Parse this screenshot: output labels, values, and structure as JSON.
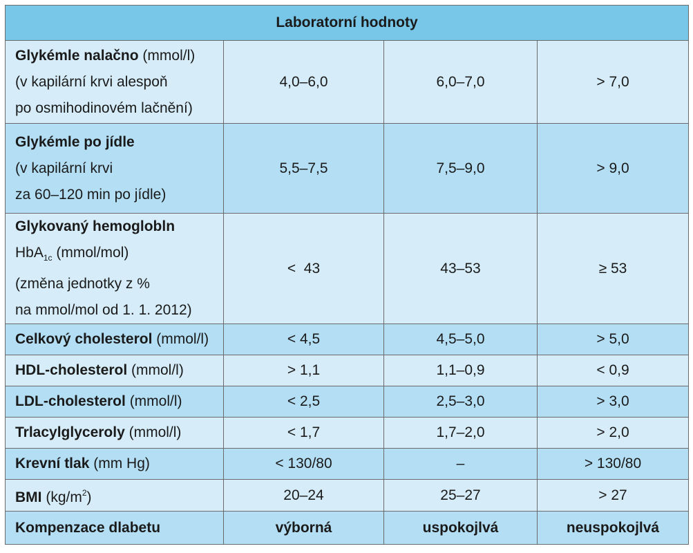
{
  "title": "Laboratorní hodnoty",
  "rows": [
    {
      "name_bold": "Glykémle nalačno",
      "name_unit": " (mmol/l)",
      "lines": [
        "(v kapilární krvi alespoň",
        "po osmihodinovém lačnění)"
      ],
      "values": [
        "4,0–6,0",
        "6,0–7,0",
        "> 7,0"
      ]
    },
    {
      "name_bold": "Glykémle po jídle",
      "name_unit": "",
      "lines": [
        "(v kapilární krvi",
        "za 60–120 min po jídle)"
      ],
      "values": [
        "5,5–7,5",
        "7,5–9,0",
        "> 9,0"
      ]
    },
    {
      "name_bold": "Glykovaný hemoglobln",
      "hba_prefix": "HbA",
      "hba_sub": "1c",
      "hba_unit": " (mmol/mol)",
      "lines": [
        "(změna jednotky z %",
        "na mmol/mol od 1. 1. 2012)"
      ],
      "values": [
        "<  43",
        "43–53",
        "≥ 53"
      ]
    },
    {
      "name_bold": "Celkový cholesterol",
      "name_unit": " (mmol/l)",
      "values": [
        "< 4,5",
        "4,5–5,0",
        "> 5,0"
      ]
    },
    {
      "name_bold": "HDL-cholesterol",
      "name_unit": " (mmol/l)",
      "values": [
        "> 1,1",
        "1,1–0,9",
        "< 0,9"
      ]
    },
    {
      "name_bold": "LDL-cholesterol",
      "name_unit": " (mmol/l)",
      "values": [
        "< 2,5",
        "2,5–3,0",
        "> 3,0"
      ]
    },
    {
      "name_bold": "Trlacylglyceroly",
      "name_unit": " (mmol/l)",
      "values": [
        "< 1,7",
        "1,7–2,0",
        "> 2,0"
      ]
    },
    {
      "name_bold": "Krevní tlak",
      "name_unit": " (mm Hg)",
      "values": [
        "< 130/80",
        "–",
        "> 130/80"
      ]
    },
    {
      "name_bold": "BMI",
      "name_unit_pre": " (kg/m",
      "name_unit_sup": "2",
      "name_unit_post": ")",
      "values": [
        "20–24",
        "25–27",
        "> 27"
      ]
    }
  ],
  "footer": {
    "label": "Kompenzace dlabetu",
    "values": [
      "výborná",
      "uspokojlvá",
      "neuspokojlvá"
    ]
  },
  "colors": {
    "header": "#78c7e8",
    "row_light": "#d6edf9",
    "row_dark": "#b3def4",
    "border": "#6a6a6a"
  }
}
